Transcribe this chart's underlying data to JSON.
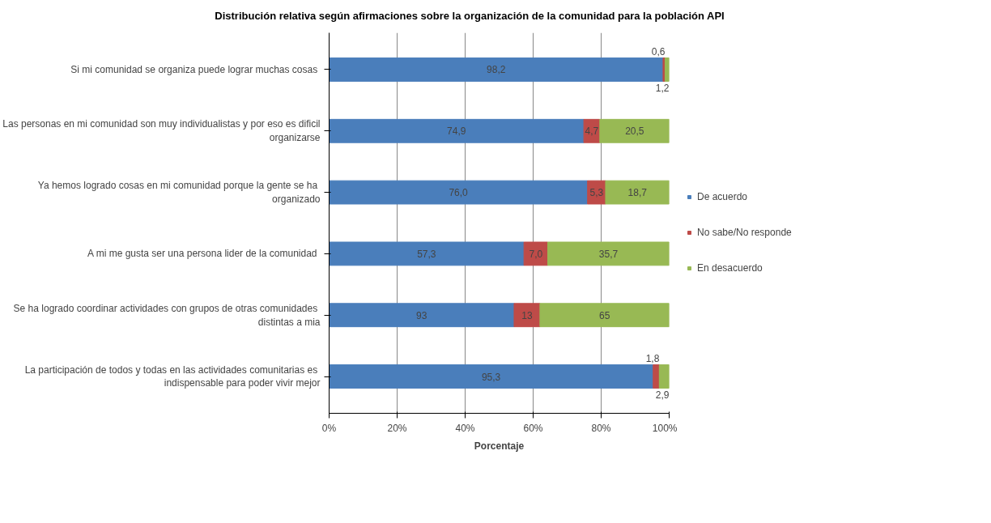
{
  "chart_data": {
    "type": "bar",
    "orientation": "horizontal",
    "stacked": true,
    "title": "Distribución relativa según afirmaciones sobre la organización de la comunidad para la población API",
    "xlabel": "Porcentaje",
    "categories": [
      "Si mi comunidad se  organiza puede lograr muchas cosas",
      "Las personas en mi comunidad son muy individualistas y por eso es dificil\norganizarse",
      "Ya hemos logrado cosas en mi  comunidad porque la gente se ha\norganizado",
      "A mi me gusta ser una  persona lider de la comunidad",
      "Se ha logrado coordinar actividades con  grupos de otras comunidades\ndistintas a mia",
      "La participación de todos y todas en las  actividades comunitarias es\nindispensable para poder vivir mejor"
    ],
    "series": [
      {
        "name": "De acuerdo",
        "color": "#4a7ebb",
        "values": [
          98.2,
          74.9,
          76.0,
          57.3,
          54.4,
          95.3
        ],
        "value_labels": [
          "98,2",
          "74,9",
          "76,0",
          "57,3",
          null,
          "95,3"
        ]
      },
      {
        "name": "No sabe/No responde",
        "color": "#be4b48",
        "values": [
          0.6,
          4.7,
          5.3,
          7.0,
          7.6,
          1.8
        ],
        "value_labels": [
          "0,6",
          "4,7",
          "5,3",
          "7,0",
          null,
          "1,8"
        ]
      },
      {
        "name": "En desacuerdo",
        "color": "#98b954",
        "values": [
          1.2,
          20.5,
          18.7,
          35.7,
          38.0,
          2.9
        ],
        "value_labels": [
          "1,2",
          "20,5",
          "18,7",
          "35,7",
          null,
          "2,9"
        ]
      }
    ],
    "annotations": [
      "93",
      "13",
      "65"
    ],
    "xlim": [
      0,
      100
    ],
    "xticks": [
      {
        "value": 0,
        "label": "0%"
      },
      {
        "value": 20,
        "label": "20%"
      },
      {
        "value": 40,
        "label": "40%"
      },
      {
        "value": 60,
        "label": "60%"
      },
      {
        "value": 80,
        "label": "80%"
      },
      {
        "value": 100,
        "label": "100%"
      }
    ],
    "grid": "x",
    "legend": "right"
  }
}
